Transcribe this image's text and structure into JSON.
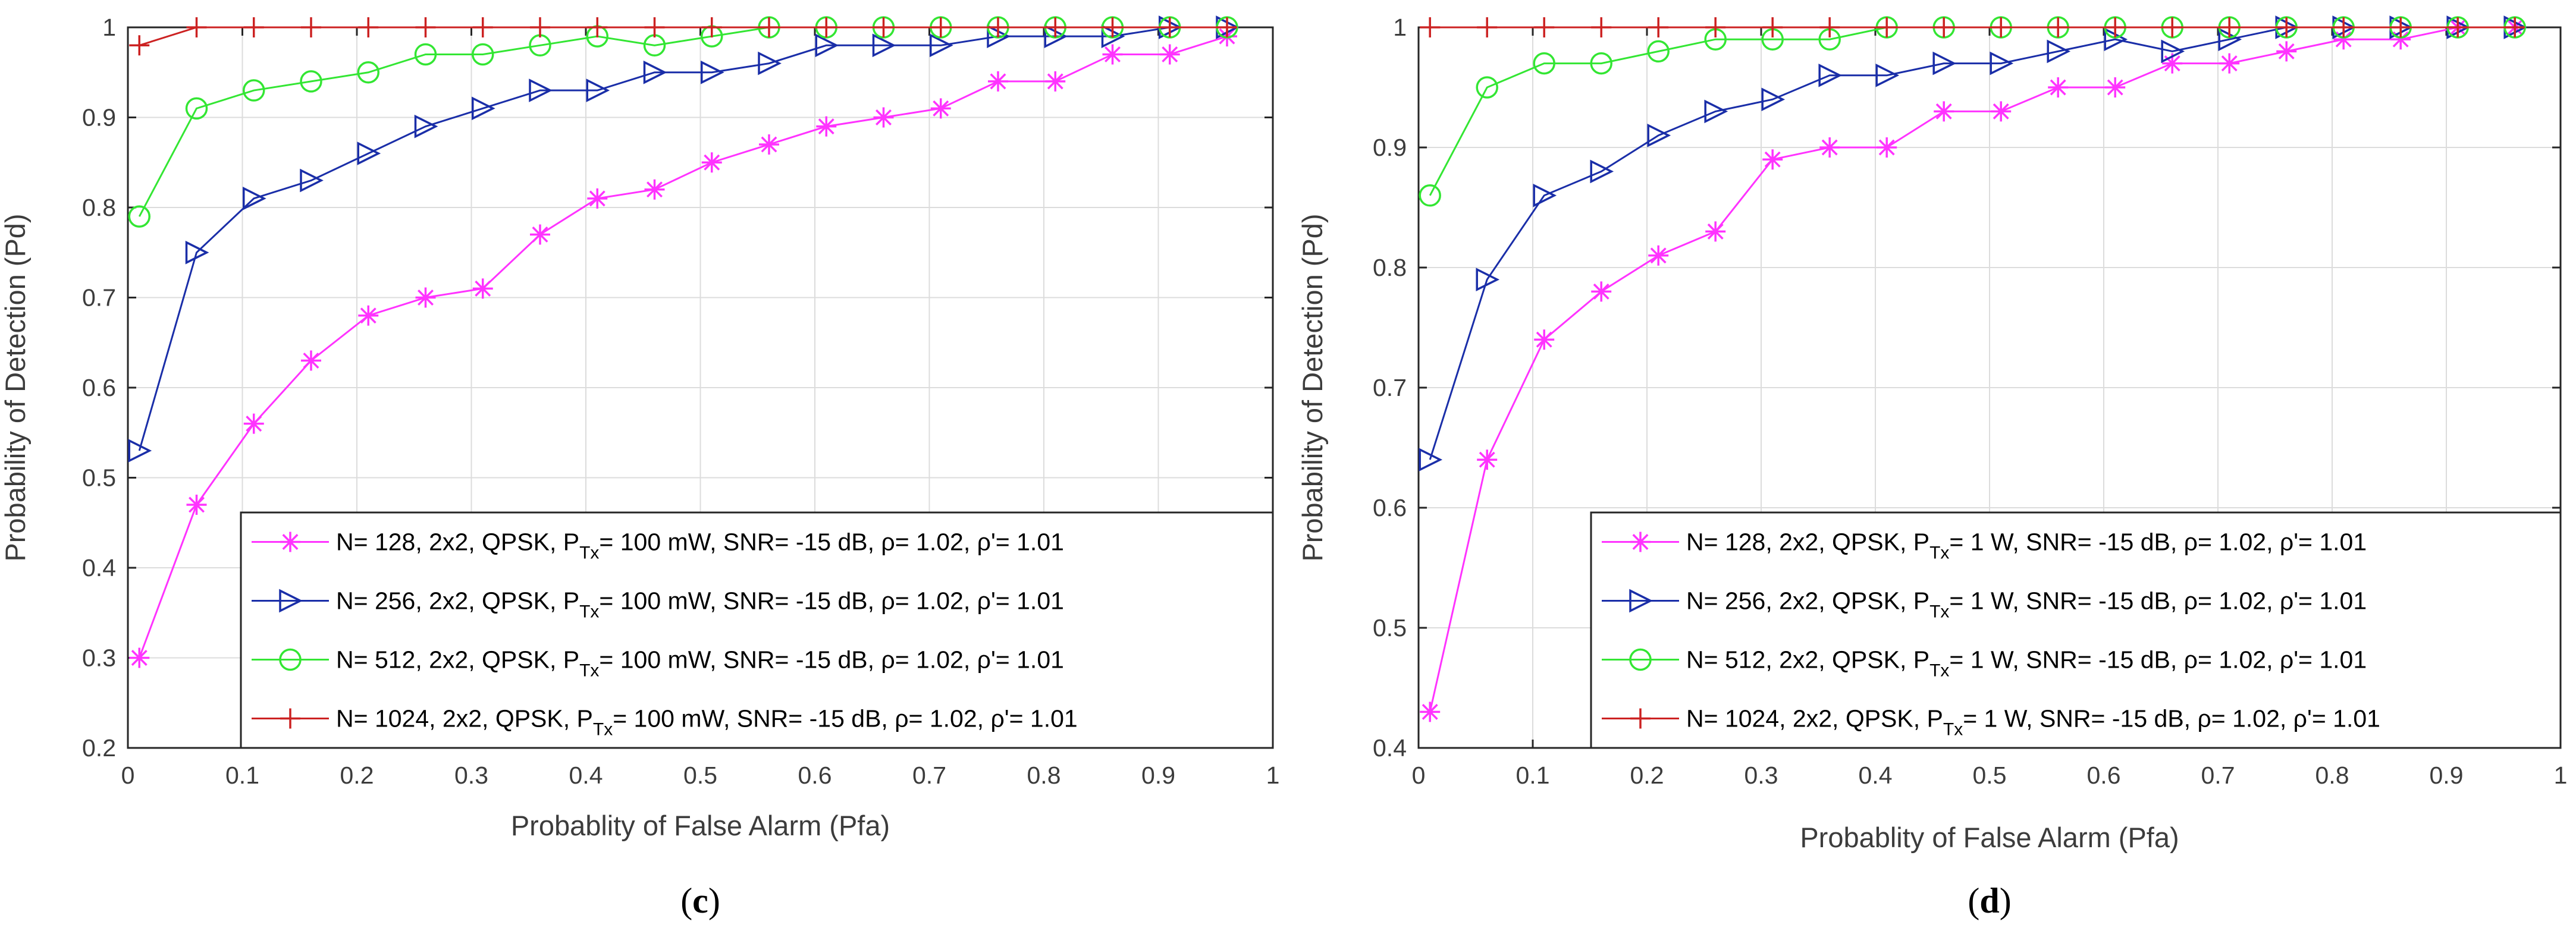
{
  "figure_title": "",
  "colors": {
    "magenta": "#ff33ff",
    "blue": "#1a2ea8",
    "green": "#33e633",
    "red": "#cc2222"
  },
  "chart_data": [
    {
      "id": "c",
      "type": "line",
      "caption": {
        "open": "(",
        "letter": "c",
        "close": ")"
      },
      "xlabel": "Probablity of False Alarm (Pfa)",
      "ylabel": "Probability of Detection (Pd)",
      "xlim": [
        0,
        1
      ],
      "ylim": [
        0.2,
        1
      ],
      "xticks": [
        0,
        0.1,
        0.2,
        0.3,
        0.4,
        0.5,
        0.6,
        0.7,
        0.8,
        0.9,
        1
      ],
      "xtick_labels": [
        "0",
        "0.1",
        "0.2",
        "0.3",
        "0.4",
        "0.5",
        "0.6",
        "0.7",
        "0.8",
        "0.9",
        "1"
      ],
      "yticks": [
        0.2,
        0.3,
        0.4,
        0.5,
        0.6,
        0.7,
        0.8,
        0.9,
        1
      ],
      "ytick_labels": [
        "0.2",
        "0.3",
        "0.4",
        "0.5",
        "0.6",
        "0.7",
        "0.8",
        "0.9",
        "1"
      ],
      "grid": true,
      "legend_position": "bottom-right",
      "x": [
        0.01,
        0.06,
        0.11,
        0.16,
        0.21,
        0.26,
        0.31,
        0.36,
        0.41,
        0.46,
        0.51,
        0.56,
        0.61,
        0.66,
        0.71,
        0.76,
        0.81,
        0.86,
        0.91,
        0.96
      ],
      "series": [
        {
          "label": {
            "main": "N= 128, 2x2, QPSK, P",
            "sub": "Tx",
            "rest": "= 100 mW, SNR= -15 dB, ρ= 1.02, ρ'= 1.01"
          },
          "color": "#ff33ff",
          "marker": "asterisk",
          "values": [
            0.3,
            0.47,
            0.56,
            0.63,
            0.68,
            0.7,
            0.71,
            0.77,
            0.81,
            0.82,
            0.85,
            0.87,
            0.89,
            0.9,
            0.91,
            0.94,
            0.94,
            0.97,
            0.97,
            0.99
          ]
        },
        {
          "label": {
            "main": "N= 256, 2x2, QPSK, P",
            "sub": "Tx",
            "rest": "= 100 mW, SNR= -15 dB, ρ= 1.02, ρ'= 1.01"
          },
          "color": "#1a2ea8",
          "marker": "triangle-right",
          "values": [
            0.53,
            0.75,
            0.81,
            0.83,
            0.86,
            0.89,
            0.91,
            0.93,
            0.93,
            0.95,
            0.95,
            0.96,
            0.98,
            0.98,
            0.98,
            0.99,
            0.99,
            0.99,
            1.0,
            1.0
          ]
        },
        {
          "label": {
            "main": "N= 512, 2x2, QPSK, P",
            "sub": "Tx",
            "rest": "= 100 mW, SNR= -15 dB, ρ= 1.02, ρ'= 1.01"
          },
          "color": "#33e633",
          "marker": "circle",
          "values": [
            0.79,
            0.91,
            0.93,
            0.94,
            0.95,
            0.97,
            0.97,
            0.98,
            0.99,
            0.98,
            0.99,
            1.0,
            1.0,
            1.0,
            1.0,
            1.0,
            1.0,
            1.0,
            1.0,
            1.0
          ]
        },
        {
          "label": {
            "main": "N= 1024, 2x2, QPSK, P",
            "sub": "Tx",
            "rest": "= 100 mW, SNR= -15 dB, ρ= 1.02, ρ'= 1.01"
          },
          "color": "#cc2222",
          "marker": "plus",
          "values": [
            0.98,
            1.0,
            1.0,
            1.0,
            1.0,
            1.0,
            1.0,
            1.0,
            1.0,
            1.0,
            1.0,
            1.0,
            1.0,
            1.0,
            1.0,
            1.0,
            1.0,
            1.0,
            1.0,
            1.0
          ]
        }
      ]
    },
    {
      "id": "d",
      "type": "line",
      "caption": {
        "open": "(",
        "letter": "d",
        "close": ")"
      },
      "xlabel": "Probablity of False Alarm (Pfa)",
      "ylabel": "Probability of Detection (Pd)",
      "xlim": [
        0,
        1
      ],
      "ylim": [
        0.4,
        1
      ],
      "xticks": [
        0,
        0.1,
        0.2,
        0.3,
        0.4,
        0.5,
        0.6,
        0.7,
        0.8,
        0.9,
        1
      ],
      "xtick_labels": [
        "0",
        "0.1",
        "0.2",
        "0.3",
        "0.4",
        "0.5",
        "0.6",
        "0.7",
        "0.8",
        "0.9",
        "1"
      ],
      "yticks": [
        0.4,
        0.5,
        0.6,
        0.7,
        0.8,
        0.9,
        1
      ],
      "ytick_labels": [
        "0.4",
        "0.5",
        "0.6",
        "0.7",
        "0.8",
        "0.9",
        "1"
      ],
      "grid": true,
      "legend_position": "bottom-right",
      "x": [
        0.01,
        0.06,
        0.11,
        0.16,
        0.21,
        0.26,
        0.31,
        0.36,
        0.41,
        0.46,
        0.51,
        0.56,
        0.61,
        0.66,
        0.71,
        0.76,
        0.81,
        0.86,
        0.91,
        0.96
      ],
      "series": [
        {
          "label": {
            "main": "N= 128, 2x2, QPSK, P",
            "sub": "Tx",
            "rest": "= 1 W, SNR= -15 dB, ρ= 1.02, ρ'= 1.01"
          },
          "color": "#ff33ff",
          "marker": "asterisk",
          "values": [
            0.43,
            0.64,
            0.74,
            0.78,
            0.81,
            0.83,
            0.89,
            0.9,
            0.9,
            0.93,
            0.93,
            0.95,
            0.95,
            0.97,
            0.97,
            0.98,
            0.99,
            0.99,
            1.0,
            1.0
          ]
        },
        {
          "label": {
            "main": "N= 256, 2x2, QPSK, P",
            "sub": "Tx",
            "rest": "= 1 W, SNR= -15 dB, ρ= 1.02, ρ'= 1.01"
          },
          "color": "#1a2ea8",
          "marker": "triangle-right",
          "values": [
            0.64,
            0.79,
            0.86,
            0.88,
            0.91,
            0.93,
            0.94,
            0.96,
            0.96,
            0.97,
            0.97,
            0.98,
            0.99,
            0.98,
            0.99,
            1.0,
            1.0,
            1.0,
            1.0,
            1.0
          ]
        },
        {
          "label": {
            "main": "N= 512, 2x2, QPSK, P",
            "sub": "Tx",
            "rest": "= 1 W, SNR= -15 dB, ρ= 1.02, ρ'= 1.01"
          },
          "color": "#33e633",
          "marker": "circle",
          "values": [
            0.86,
            0.95,
            0.97,
            0.97,
            0.98,
            0.99,
            0.99,
            0.99,
            1.0,
            1.0,
            1.0,
            1.0,
            1.0,
            1.0,
            1.0,
            1.0,
            1.0,
            1.0,
            1.0,
            1.0
          ]
        },
        {
          "label": {
            "main": "N= 1024, 2x2, QPSK, P",
            "sub": "Tx",
            "rest": "= 1 W, SNR= -15 dB, ρ= 1.02, ρ'= 1.01"
          },
          "color": "#cc2222",
          "marker": "plus",
          "values": [
            1.0,
            1.0,
            1.0,
            1.0,
            1.0,
            1.0,
            1.0,
            1.0,
            1.0,
            1.0,
            1.0,
            1.0,
            1.0,
            1.0,
            1.0,
            1.0,
            1.0,
            1.0,
            1.0,
            1.0
          ]
        }
      ]
    }
  ]
}
